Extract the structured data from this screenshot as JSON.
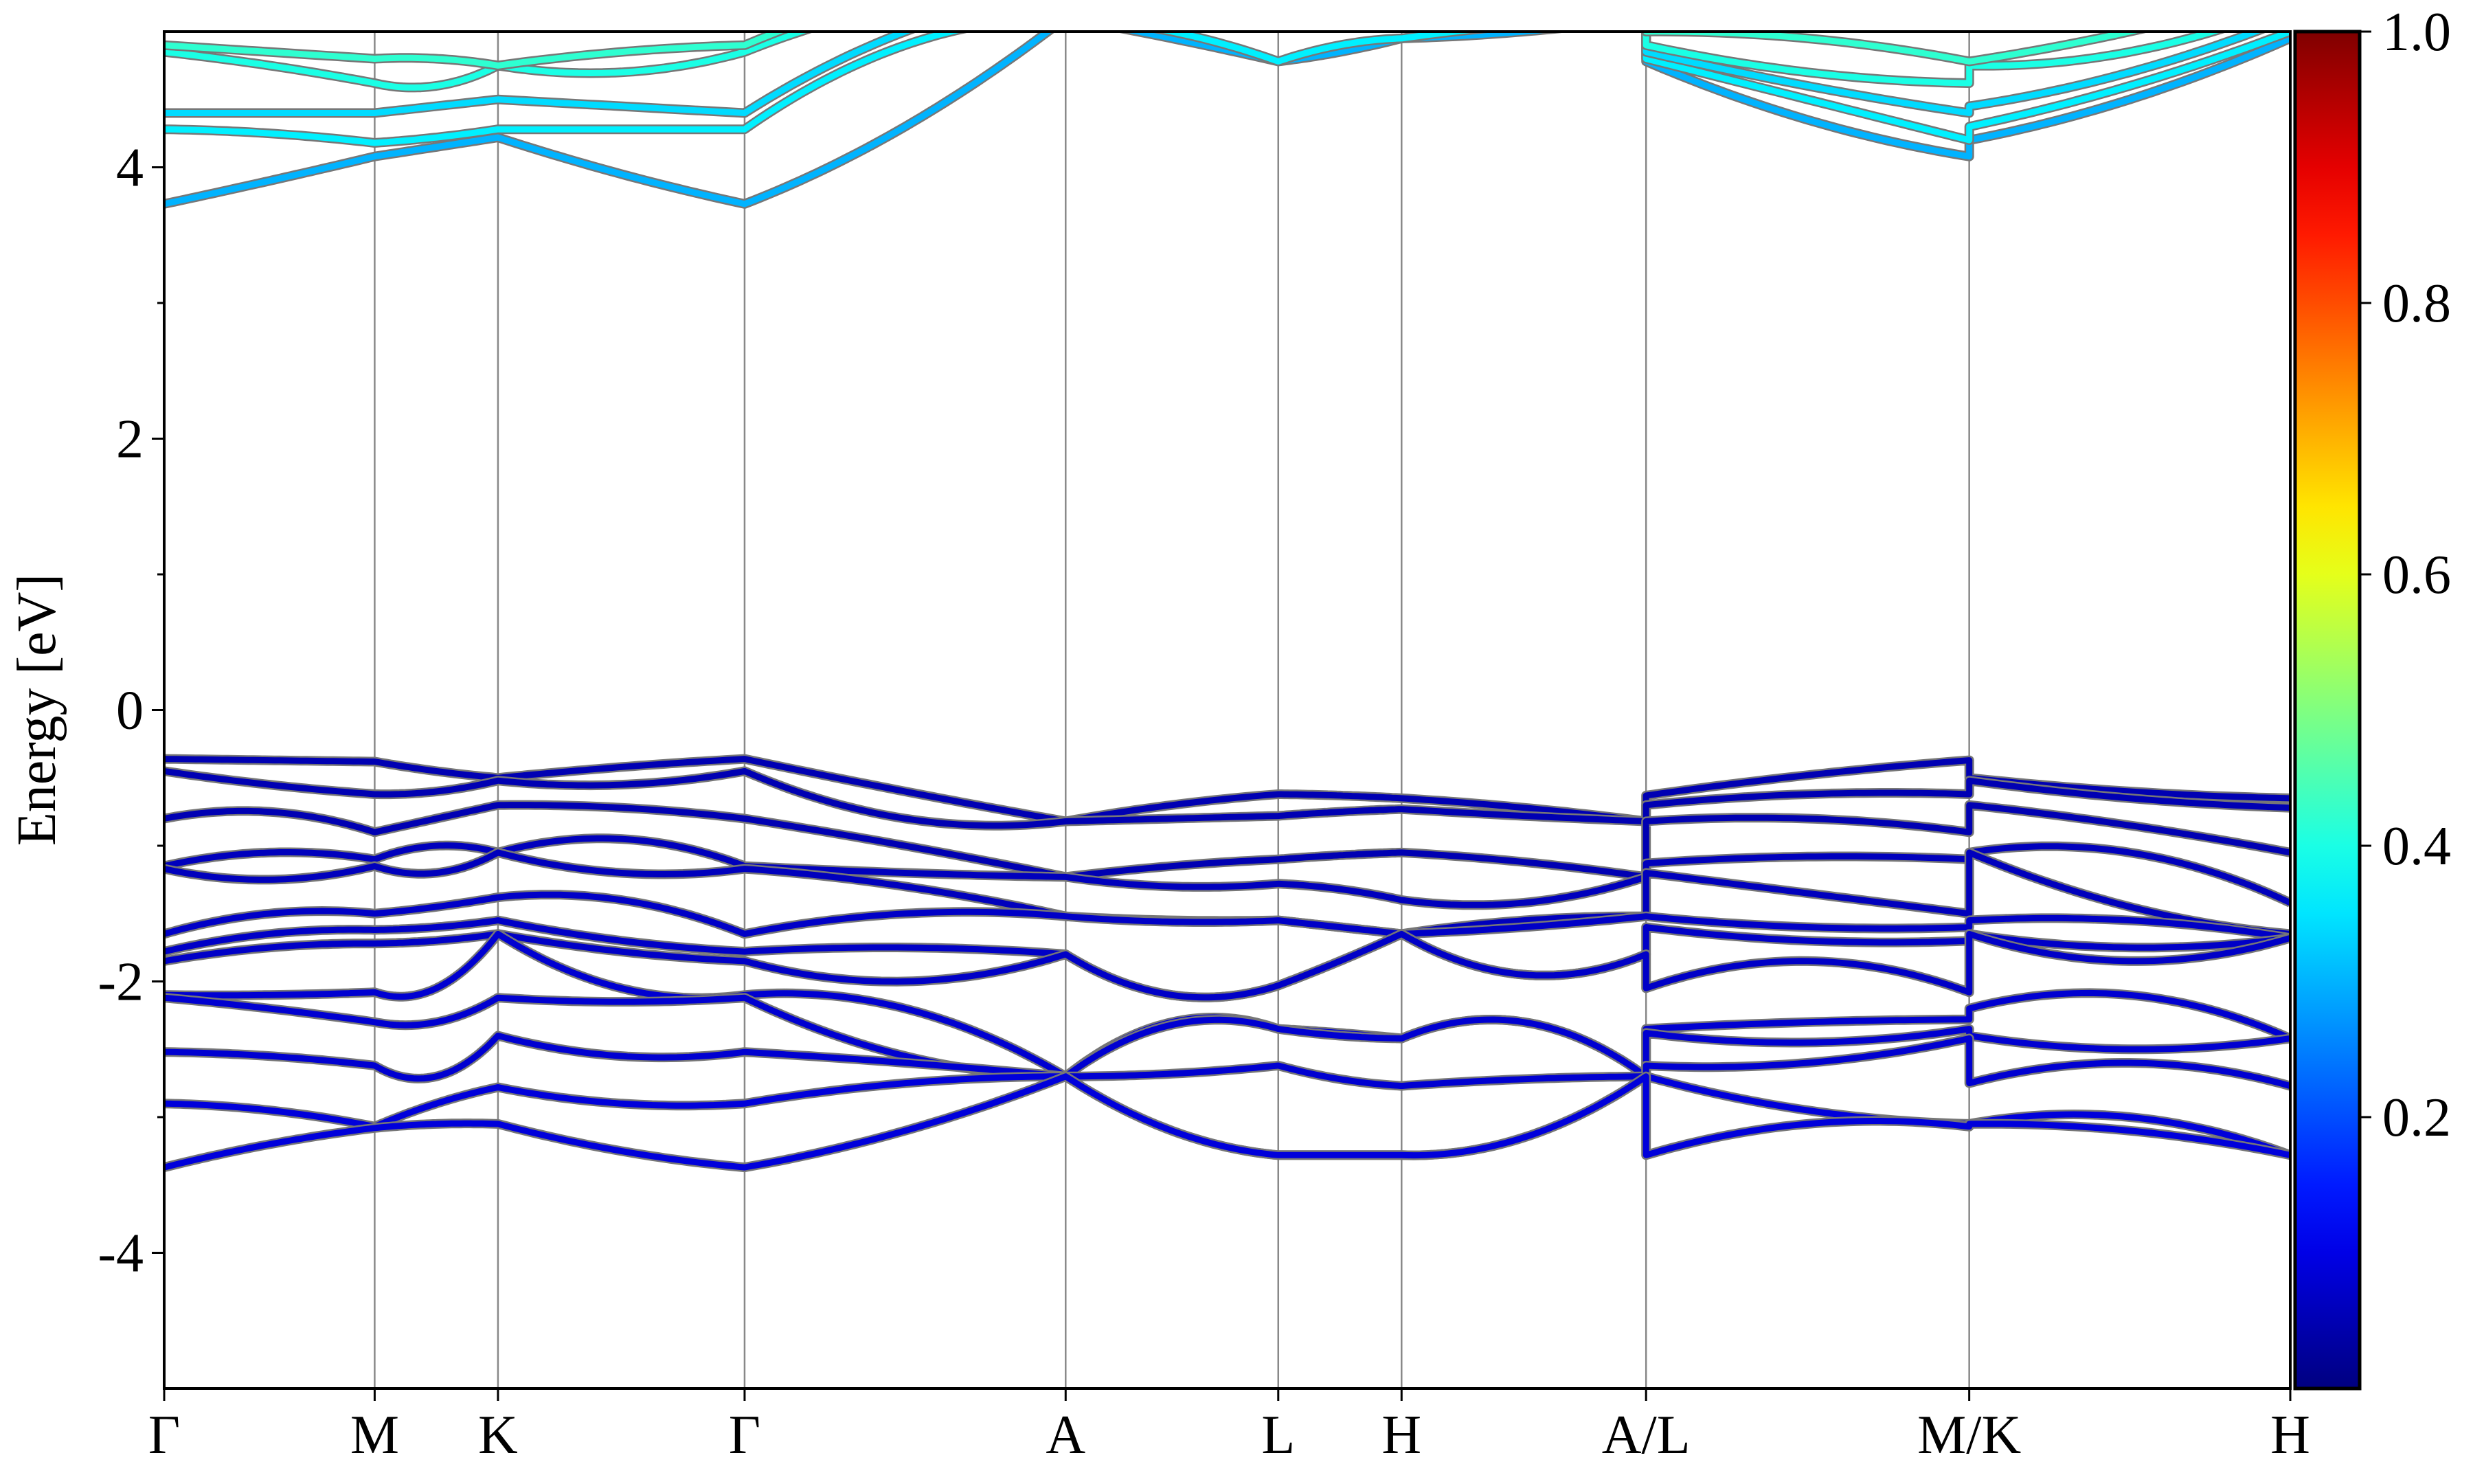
{
  "chart_data": {
    "type": "line",
    "title": "",
    "xlabel": "",
    "ylabel": "Energy [eV]",
    "ylim": [
      -5,
      5
    ],
    "y_ticks": [
      "-4",
      "-2",
      "0",
      "2",
      "4"
    ],
    "y_tick_values": [
      -4,
      -2,
      0,
      2,
      4
    ],
    "grid": "vertical lines at high-symmetry points",
    "kpath": {
      "labels": [
        "Γ",
        "M",
        "K",
        "Γ",
        "A",
        "L",
        "H",
        "A/L",
        "M/K",
        "H"
      ],
      "positions": [
        0,
        0.099,
        0.157,
        0.273,
        0.424,
        0.524,
        0.582,
        0.697,
        0.849,
        1.0
      ]
    },
    "colorbar": {
      "colormap": "jet",
      "range": [
        0,
        1.0
      ],
      "ticks": [
        "0.2",
        "0.4",
        "0.6",
        "0.8",
        "1.0"
      ],
      "tick_values": [
        0.2,
        0.4,
        0.6,
        0.8,
        1.0
      ]
    },
    "band_groups": [
      {
        "group": "valence",
        "weights": [
          0.05,
          0.05,
          0.05,
          0.06,
          0.06,
          0.07,
          0.07,
          0.07,
          0.08,
          0.08,
          0.08,
          0.09,
          0.09
        ],
        "segments": [
          {
            "from": "Γ",
            "to": "M",
            "start": [
              -0.36,
              -0.45,
              -0.8,
              -1.15,
              -1.17,
              -1.65,
              -1.78,
              -1.85,
              -2.1,
              -2.12,
              -2.52,
              -2.9,
              -3.37
            ],
            "mid": [
              -0.37,
              -0.55,
              -0.75,
              -1.05,
              -1.25,
              -1.5,
              -1.65,
              -1.75,
              -2.1,
              -2.2,
              -2.55,
              -2.95,
              -3.2
            ],
            "end": [
              -0.38,
              -0.62,
              -0.9,
              -1.1,
              -1.15,
              -1.5,
              -1.62,
              -1.72,
              -2.08,
              -2.3,
              -2.62,
              -3.07,
              -3.08
            ]
          },
          {
            "from": "M",
            "to": "K",
            "start": [
              -0.38,
              -0.62,
              -0.9,
              -1.1,
              -1.15,
              -1.5,
              -1.62,
              -1.72,
              -2.08,
              -2.3,
              -2.62,
              -3.07,
              -3.08
            ],
            "mid": [
              -0.45,
              -0.6,
              -0.8,
              -1.0,
              -1.2,
              -1.45,
              -1.6,
              -1.7,
              -2.05,
              -2.3,
              -2.7,
              -2.9,
              -3.05
            ],
            "end": [
              -0.5,
              -0.52,
              -0.7,
              -1.05,
              -1.05,
              -1.38,
              -1.55,
              -1.65,
              -1.65,
              -2.12,
              -2.4,
              -2.78,
              -3.05
            ]
          },
          {
            "from": "K",
            "to": "Γ",
            "start": [
              -0.5,
              -0.52,
              -0.7,
              -1.05,
              -1.05,
              -1.38,
              -1.55,
              -1.65,
              -1.65,
              -2.12,
              -2.4,
              -2.78,
              -3.05
            ],
            "mid": [
              -0.42,
              -0.55,
              -0.72,
              -0.95,
              -1.2,
              -1.4,
              -1.7,
              -1.78,
              -2.05,
              -2.15,
              -2.55,
              -2.9,
              -3.25
            ],
            "end": [
              -0.36,
              -0.45,
              -0.8,
              -1.15,
              -1.17,
              -1.65,
              -1.78,
              -1.85,
              -2.1,
              -2.12,
              -2.52,
              -2.9,
              -3.37
            ]
          },
          {
            "from": "Γ",
            "to": "A",
            "start": [
              -0.36,
              -0.45,
              -0.8,
              -1.15,
              -1.17,
              -1.65,
              -1.78,
              -1.85,
              -2.1,
              -2.12,
              -2.52,
              -2.9,
              -3.37
            ],
            "mid": [
              -0.6,
              -0.8,
              -1.0,
              -1.2,
              -1.3,
              -1.5,
              -1.75,
              -2.0,
              -2.2,
              -2.55,
              -2.6,
              -2.75,
              -3.1
            ],
            "end": [
              -0.82,
              -0.82,
              -1.23,
              -1.23,
              -1.52,
              -1.52,
              -1.8,
              -1.8,
              -2.7,
              -2.7,
              -2.7,
              -2.7,
              -2.7
            ]
          },
          {
            "from": "A",
            "to": "L",
            "start": [
              -0.82,
              -0.82,
              -1.23,
              -1.23,
              -1.52,
              -1.52,
              -1.8,
              -1.8,
              -2.7,
              -2.7,
              -2.7,
              -2.7,
              -2.7
            ],
            "mid": [
              -0.7,
              -0.8,
              -1.15,
              -1.3,
              -1.55,
              -1.56,
              -2.1,
              -2.1,
              -2.3,
              -2.32,
              -2.68,
              -3.1,
              -3.1
            ],
            "end": [
              -0.62,
              -0.78,
              -1.1,
              -1.28,
              -1.55,
              -1.55,
              -2.03,
              -2.03,
              -2.35,
              -2.35,
              -2.62,
              -3.28,
              -3.28
            ]
          },
          {
            "from": "L",
            "to": "H",
            "start": [
              -0.62,
              -0.78,
              -1.1,
              -1.28,
              -1.55,
              -1.55,
              -2.03,
              -2.03,
              -2.35,
              -2.35,
              -2.62,
              -3.28,
              -3.28
            ],
            "mid": [
              -0.63,
              -0.75,
              -1.07,
              -1.32,
              -1.6,
              -1.6,
              -1.85,
              -1.85,
              -2.38,
              -2.4,
              -2.72,
              -3.28,
              -3.28
            ],
            "end": [
              -0.65,
              -0.73,
              -1.05,
              -1.4,
              -1.65,
              -1.65,
              -1.65,
              -1.65,
              -2.42,
              -2.42,
              -2.77,
              -3.28,
              -3.28
            ]
          },
          {
            "from": "H",
            "to": "A",
            "start": [
              -0.65,
              -0.73,
              -1.05,
              -1.4,
              -1.65,
              -1.65,
              -1.65,
              -1.65,
              -2.42,
              -2.42,
              -2.77,
              -3.28,
              -3.28
            ],
            "mid": [
              -0.72,
              -0.78,
              -1.12,
              -1.42,
              -1.55,
              -1.6,
              -1.95,
              -1.95,
              -2.3,
              -2.3,
              -2.72,
              -3.15,
              -3.15
            ],
            "end": [
              -0.82,
              -0.82,
              -1.23,
              -1.23,
              -1.52,
              -1.52,
              -1.8,
              -1.8,
              -2.7,
              -2.7,
              -2.7,
              -2.7,
              -2.7
            ]
          },
          {
            "from": "L",
            "to": "M",
            "start": [
              -0.63,
              -0.7,
              -0.82,
              -1.13,
              -1.2,
              -1.52,
              -1.6,
              -2.05,
              -2.35,
              -2.38,
              -2.62,
              -2.7,
              -3.28
            ],
            "mid": [
              -0.48,
              -0.62,
              -0.8,
              -1.08,
              -1.35,
              -1.6,
              -1.7,
              -1.85,
              -2.3,
              -2.45,
              -2.6,
              -2.95,
              -3.05
            ],
            "end": [
              -0.37,
              -0.62,
              -0.9,
              -1.1,
              -1.5,
              -1.6,
              -1.7,
              -2.08,
              -2.28,
              -2.35,
              -2.42,
              -3.05,
              -3.07
            ]
          },
          {
            "from": "K",
            "to": "H",
            "start": [
              -0.5,
              -0.52,
              -0.7,
              -1.05,
              -1.05,
              -1.55,
              -1.65,
              -1.65,
              -2.2,
              -2.4,
              -2.75,
              -3.05,
              -3.05
            ],
            "mid": [
              -0.6,
              -0.65,
              -0.85,
              -1.05,
              -1.45,
              -1.55,
              -1.75,
              -1.85,
              -2.1,
              -2.5,
              -2.6,
              -3.0,
              -3.1
            ],
            "end": [
              -0.65,
              -0.72,
              -1.05,
              -1.42,
              -1.65,
              -1.68,
              -1.68,
              -1.68,
              -2.42,
              -2.42,
              -2.77,
              -3.28,
              -3.28
            ]
          }
        ]
      },
      {
        "group": "conduction",
        "weights": [
          0.3,
          0.36,
          0.34,
          0.4,
          0.42
        ],
        "segments": [
          {
            "from": "Γ",
            "to": "M",
            "start": [
              3.73,
              4.28,
              4.4,
              4.85,
              4.9
            ],
            "mid": [
              3.9,
              4.25,
              4.4,
              4.75,
              4.85
            ],
            "end": [
              4.08,
              4.18,
              4.4,
              4.62,
              4.8
            ]
          },
          {
            "from": "M",
            "to": "K",
            "start": [
              4.08,
              4.18,
              4.4,
              4.62,
              4.8
            ],
            "mid": [
              4.15,
              4.22,
              4.45,
              4.6,
              4.8
            ],
            "end": [
              4.22,
              4.28,
              4.5,
              4.75,
              4.75
            ]
          },
          {
            "from": "K",
            "to": "Γ",
            "start": [
              4.22,
              4.28,
              4.5,
              4.75,
              4.75
            ],
            "mid": [
              3.95,
              4.28,
              4.45,
              4.7,
              4.85
            ],
            "end": [
              3.73,
              4.28,
              4.4,
              4.85,
              4.9
            ]
          },
          {
            "from": "Γ",
            "to": "A",
            "start": [
              3.73,
              4.28,
              4.4,
              4.85,
              4.9
            ],
            "mid": [
              4.3,
              4.9,
              5.0,
              5.2,
              5.3
            ],
            "end": [
              5.1,
              5.1,
              5.3,
              5.3,
              5.5
            ]
          },
          {
            "from": "A",
            "to": "L",
            "start": [
              5.1,
              5.1,
              5.3,
              5.3,
              5.5
            ],
            "mid": [
              4.95,
              5.0,
              5.3,
              5.4,
              5.5
            ],
            "end": [
              4.78,
              4.78,
              5.2,
              5.3,
              5.4
            ]
          },
          {
            "from": "L",
            "to": "H",
            "start": [
              4.78,
              4.78,
              5.2,
              5.3,
              5.4
            ],
            "mid": [
              4.85,
              4.9,
              5.2,
              5.3,
              5.4
            ],
            "end": [
              4.95,
              4.95,
              5.2,
              5.3,
              5.4
            ]
          },
          {
            "from": "H",
            "to": "A",
            "start": [
              4.95,
              4.95,
              5.2,
              5.3,
              5.4
            ],
            "mid": [
              5.0,
              5.05,
              5.3,
              5.4,
              5.5
            ],
            "end": [
              5.1,
              5.1,
              5.3,
              5.3,
              5.5
            ]
          },
          {
            "from": "L",
            "to": "M",
            "start": [
              4.78,
              4.8,
              4.85,
              4.9,
              5.0
            ],
            "mid": [
              4.35,
              4.5,
              4.6,
              4.7,
              4.95
            ],
            "end": [
              4.08,
              4.2,
              4.4,
              4.62,
              4.78
            ]
          },
          {
            "from": "K",
            "to": "H",
            "start": [
              4.2,
              4.3,
              4.45,
              4.75,
              4.78
            ],
            "mid": [
              4.5,
              4.6,
              4.7,
              4.85,
              5.0
            ],
            "end": [
              4.95,
              5.0,
              5.1,
              5.2,
              5.3
            ]
          }
        ]
      }
    ]
  }
}
